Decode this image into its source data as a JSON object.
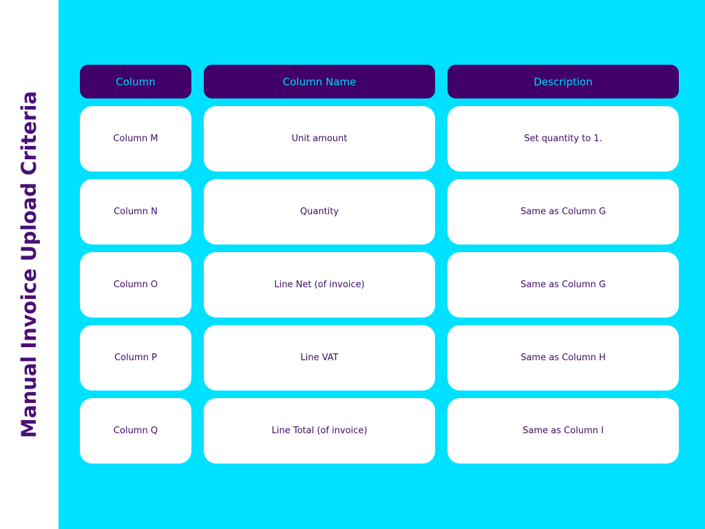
{
  "header": {
    "title": "Manual Invoice Upload Criteria"
  },
  "table": {
    "columns": [
      "Column",
      "Column Name",
      "Description"
    ],
    "rows": [
      [
        "Column M",
        "Unit amount",
        "Set quantity to 1."
      ],
      [
        "Column N",
        "Quantity",
        "Same as Column G"
      ],
      [
        "Column O",
        "Line Net (of invoice)",
        "Same as Column G"
      ],
      [
        "Column P",
        "Line VAT",
        "Same as Column H"
      ],
      [
        "Column Q",
        "Line Total (of invoice)",
        "Same as Column I"
      ]
    ]
  }
}
